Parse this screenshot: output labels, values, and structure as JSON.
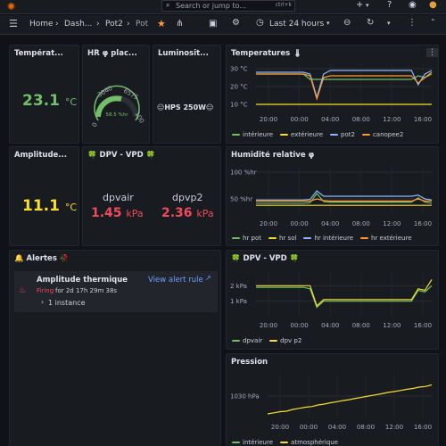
{
  "topbar": {
    "search_placeholder": "Search or jump to...",
    "shortcut": "ctrl+k",
    "plus": "+"
  },
  "toolbar": {
    "crumb_home": "Home",
    "crumb_dash": "Dash...",
    "crumb_pot2": "Pot2",
    "crumb_pot": "Pot",
    "time_range": "Last 24 hours"
  },
  "colors": {
    "green": "#73bf69",
    "yellow": "#fade2a",
    "blue": "#8ab8ff",
    "orange": "#ff9830",
    "red": "#f2495c"
  },
  "panels": {
    "temp_stat": {
      "title": "Températ...",
      "value": "23.1",
      "unit": "°C"
    },
    "hr_gauge": {
      "title": "HR φ plac...",
      "value": "58.5",
      "unit": "%hr",
      "ticks": [
        "0",
        "3040",
        "6575",
        "100"
      ]
    },
    "lumi": {
      "title": "Luminosit...",
      "value": "😑HPS 250W😑"
    },
    "amp": {
      "title": "Amplitude...",
      "value": "11.1",
      "unit": "°C"
    },
    "dpv_stat": {
      "title": "🍀 DPV - VPD 🍀",
      "a_label": "dpvair",
      "a_value": "1.45",
      "a_unit": "kPa",
      "b_label": "dpvp2",
      "b_value": "2.36",
      "b_unit": "kPa"
    },
    "alerts": {
      "title": "🔔 Alertes 🥀",
      "rule_name": "Amplitude thermique",
      "view_link": "View alert rule",
      "state": "Firing",
      "duration": "for 2d 17h 29m 38s",
      "instances": "1 instance"
    }
  },
  "charts": {
    "temperatures": {
      "title": "Temperatures 🌡",
      "chart_data": {
        "type": "line",
        "ylabels": [
          "30 °C",
          "20 °C",
          "10 °C"
        ],
        "yticks": [
          30,
          20,
          10
        ],
        "ylim": [
          6,
          33
        ],
        "xlabels": [
          "20:00",
          "00:00",
          "04:00",
          "08:00",
          "12:00",
          "16:00"
        ],
        "series": [
          {
            "name": "intérieure",
            "color": "#73bf69",
            "values": [
              27,
              27,
              27,
              27,
              27,
              27,
              27,
              27,
              24,
              24,
              24,
              24,
              24,
              24,
              24,
              24,
              24,
              24,
              24,
              24,
              24,
              24,
              24,
              24,
              26,
              25,
              27
            ]
          },
          {
            "name": "extérieure",
            "color": "#fade2a",
            "values": [
              10,
              10,
              10,
              10,
              10,
              10,
              10,
              10,
              10,
              10,
              10,
              10,
              10,
              10,
              10,
              10,
              10,
              10,
              10,
              10,
              10,
              10,
              10,
              10,
              10,
              10,
              10
            ]
          },
          {
            "name": "pot2",
            "color": "#8ab8ff",
            "values": [
              28,
              28,
              28,
              28,
              28,
              28,
              28,
              28,
              27,
              14,
              27,
              29,
              29,
              29,
              29,
              29,
              29,
              29,
              29,
              29,
              29,
              29,
              29,
              29,
              21,
              27,
              29
            ]
          },
          {
            "name": "canopee2",
            "color": "#ff9830",
            "values": [
              27,
              27,
              27,
              27,
              27,
              27,
              27,
              27,
              26,
              13,
              25,
              26,
              26,
              26,
              26,
              26,
              26,
              26,
              26,
              26,
              26,
              26,
              26,
              26,
              22,
              25,
              28
            ]
          }
        ]
      }
    },
    "humidite": {
      "title": "Humidité relative φ",
      "chart_data": {
        "type": "line",
        "ylabels": [
          "100 %hr",
          "50 %hr"
        ],
        "yticks": [
          100,
          50
        ],
        "ylim": [
          20,
          110
        ],
        "xlabels": [
          "20:00",
          "00:00",
          "04:00",
          "08:00",
          "12:00",
          "16:00"
        ],
        "series": [
          {
            "name": "hr pot",
            "color": "#73bf69",
            "values": [
              42,
              42,
              42,
              42,
              42,
              42,
              42,
              42,
              43,
              60,
              45,
              44,
              44,
              44,
              44,
              44,
              44,
              44,
              44,
              44,
              44,
              44,
              44,
              44,
              52,
              44,
              42
            ]
          },
          {
            "name": "hr sol",
            "color": "#fade2a",
            "values": [
              38,
              38,
              38,
              38,
              38,
              38,
              38,
              38,
              38,
              38,
              38,
              38,
              38,
              38,
              38,
              38,
              38,
              38,
              38,
              38,
              38,
              38,
              38,
              38,
              38,
              38,
              38
            ]
          },
          {
            "name": "hr intérieure",
            "color": "#8ab8ff",
            "values": [
              48,
              48,
              48,
              48,
              48,
              48,
              48,
              48,
              49,
              65,
              55,
              55,
              55,
              55,
              55,
              55,
              55,
              55,
              55,
              55,
              55,
              55,
              55,
              55,
              57,
              50,
              48
            ]
          },
          {
            "name": "hr extérieure",
            "color": "#ff9830",
            "values": [
              46,
              46,
              46,
              46,
              46,
              46,
              46,
              46,
              46,
              50,
              47,
              46,
              46,
              46,
              46,
              46,
              46,
              46,
              46,
              46,
              46,
              46,
              46,
              46,
              50,
              46,
              46
            ]
          }
        ]
      }
    },
    "dpv": {
      "title": "🍀 DPV - VPD 🍀",
      "chart_data": {
        "type": "line",
        "ylabels": [
          "2 kPa",
          "1 kPa"
        ],
        "yticks": [
          2,
          1
        ],
        "ylim": [
          0,
          3
        ],
        "xlabels": [
          "20:00",
          "00:00",
          "04:00",
          "08:00",
          "12:00",
          "16:00"
        ],
        "series": [
          {
            "name": "dpvair",
            "color": "#73bf69",
            "values": [
              1.9,
              1.9,
              1.9,
              1.9,
              1.9,
              1.9,
              1.9,
              1.9,
              1.8,
              0.6,
              1.0,
              1.0,
              1.0,
              1.0,
              1.0,
              1.0,
              1.0,
              1.0,
              1.0,
              1.0,
              1.0,
              1.0,
              1.0,
              1.0,
              1.7,
              1.6,
              2.0
            ]
          },
          {
            "name": "dpv p2",
            "color": "#fade2a",
            "values": [
              2.0,
              2.0,
              2.0,
              2.0,
              2.0,
              2.0,
              2.0,
              2.0,
              2.0,
              0.7,
              1.1,
              1.1,
              1.1,
              1.1,
              1.1,
              1.1,
              1.1,
              1.1,
              1.1,
              1.1,
              1.1,
              1.1,
              1.1,
              1.1,
              1.8,
              1.7,
              2.4
            ]
          }
        ]
      }
    },
    "pression": {
      "title": "Pression",
      "chart_data": {
        "type": "line",
        "ylabels": [
          "1030 hPa"
        ],
        "yticks": [
          1030
        ],
        "ylim": [
          1020,
          1040
        ],
        "xlabels": [
          "20:00",
          "00:00",
          "04:00",
          "08:00",
          "12:00",
          "16:00"
        ],
        "series": [
          {
            "name": "intérieure",
            "color": "#73bf69",
            "values": []
          },
          {
            "name": "atmosphérique",
            "color": "#fade2a",
            "values": [
              1022,
              1022.5,
              1023,
              1023.2,
              1024,
              1024.5,
              1025,
              1025.3,
              1026,
              1026.4,
              1027,
              1027.5,
              1028,
              1028.4,
              1029,
              1029.5,
              1030,
              1030.5,
              1031,
              1031.6,
              1032,
              1032.5,
              1033,
              1033.4,
              1034,
              1034.3,
              1035
            ]
          }
        ]
      }
    }
  }
}
